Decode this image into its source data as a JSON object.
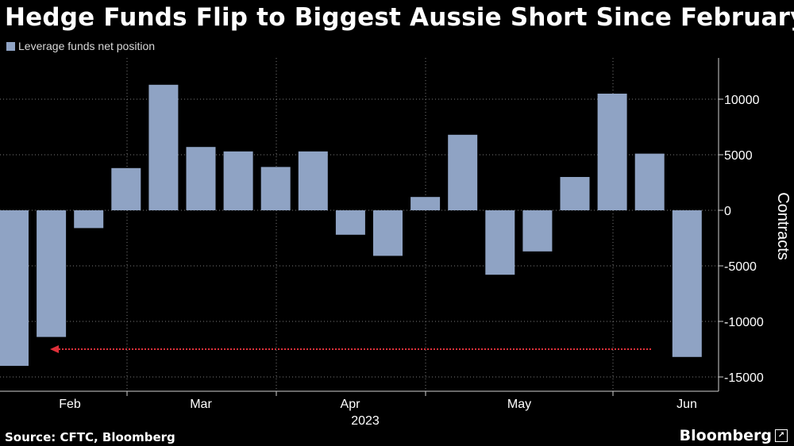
{
  "header": {
    "title": "Hedge Funds Flip to Biggest Aussie Short Since February"
  },
  "legend": {
    "label": "Leverage funds net position",
    "color": "#8fa3c4"
  },
  "footer": {
    "source": "Source: CFTC, Bloomberg",
    "brand": "Bloomberg"
  },
  "chart_data": {
    "type": "bar",
    "title": "Hedge Funds Flip to Biggest Aussie Short Since February",
    "ylabel": "Contracts",
    "xlabel": "2023",
    "ylim": [
      -16000,
      13500
    ],
    "yticks": [
      10000,
      5000,
      0,
      -5000,
      -10000,
      -15000
    ],
    "ytick_labels": [
      "10000",
      "5000",
      "0",
      "-5000",
      "-10000",
      "-15000"
    ],
    "x_ticks": [
      "Feb",
      "Mar",
      "Apr",
      "May",
      "Jun"
    ],
    "x_year": "2023",
    "grid": true,
    "legend_position": "top-left",
    "bar_color": "#8fa3c4",
    "annotation_color": "#e0303a",
    "series": [
      {
        "name": "Leverage funds net position",
        "values": [
          -14000,
          -11400,
          -1600,
          3800,
          11300,
          5700,
          5300,
          3900,
          5300,
          -2200,
          -4100,
          1200,
          6800,
          -5800,
          -3700,
          3000,
          10500,
          5100,
          -13200
        ]
      }
    ]
  }
}
